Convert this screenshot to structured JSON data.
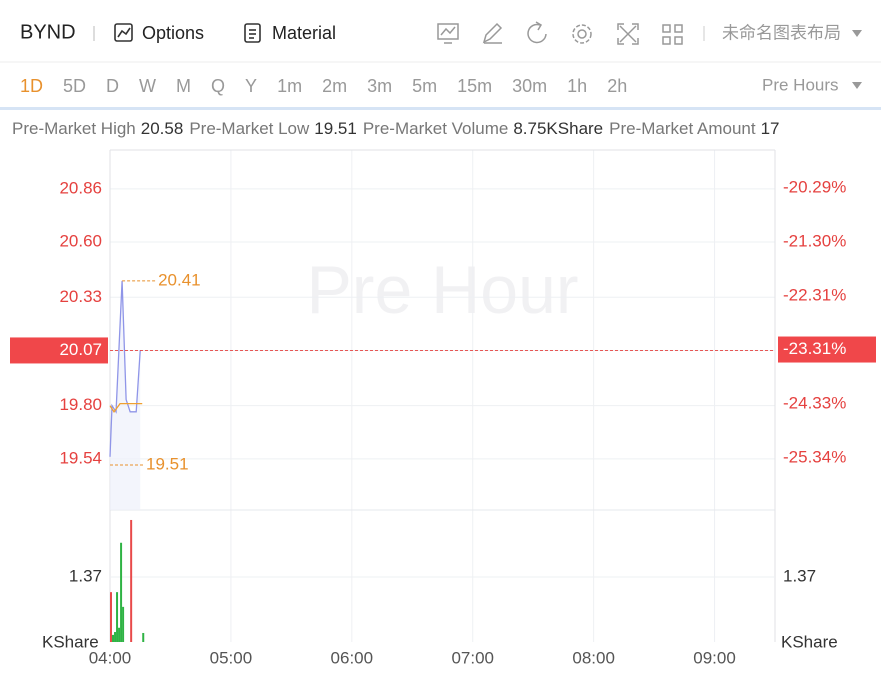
{
  "header": {
    "symbol": "BYND",
    "buttons": [
      "Options",
      "Material"
    ],
    "layout_name": "未命名图表布局"
  },
  "intervals": [
    "1D",
    "5D",
    "D",
    "W",
    "M",
    "Q",
    "Y",
    "1m",
    "2m",
    "3m",
    "5m",
    "15m",
    "30m",
    "1h",
    "2h"
  ],
  "selected_interval_index": 0,
  "session": "Pre Hours",
  "stats": [
    {
      "label": "Pre-Market High",
      "value": "20.58"
    },
    {
      "label": "Pre-Market Low",
      "value": "19.51"
    },
    {
      "label": "Pre-Market Volume",
      "value": "8.75KShare"
    },
    {
      "label": "Pre-Market Amount",
      "value": "17"
    }
  ],
  "chart_data": {
    "type": "line",
    "watermark": "Pre Hour",
    "xlim": [
      "04:00",
      "09:30"
    ],
    "xticks": [
      "04:00",
      "05:00",
      "06:00",
      "07:00",
      "08:00",
      "09:00"
    ],
    "ylim": [
      19.29,
      21.05
    ],
    "yticks": [
      20.86,
      {
        "value": 20.6,
        "label": "20.60"
      },
      20.33,
      20.07,
      {
        "value": 19.8,
        "label": "19.80"
      },
      19.54
    ],
    "y2lim": [
      -26.31,
      -19.58
    ],
    "y2ticks": [
      {
        "value": -20.29,
        "label": "-20.29%"
      },
      {
        "value": -21.3,
        "label": "-21.30%"
      },
      {
        "value": -22.31,
        "label": "-22.31%"
      },
      {
        "value": -23.31,
        "label": "-23.31%"
      },
      {
        "value": -24.33,
        "label": "-24.33%"
      },
      {
        "value": -25.34,
        "label": "-25.34%"
      }
    ],
    "grid": true,
    "current_price": 20.07,
    "series": [
      {
        "color": "#8f95e8",
        "x": [
          "04:00",
          "04:01",
          "04:03",
          "04:06",
          "04:08",
          "04:10",
          "04:13",
          "04:15"
        ],
        "values": [
          19.55,
          19.8,
          19.77,
          20.41,
          19.83,
          19.77,
          19.77,
          20.07
        ]
      },
      {
        "color": "#f0a030",
        "x": [
          "04:00",
          "04:02",
          "04:05",
          "04:08",
          "04:16"
        ],
        "values": [
          19.8,
          19.77,
          19.81,
          19.81,
          19.81
        ]
      }
    ],
    "annotations": [
      {
        "x": "04:06",
        "value": 20.41
      },
      {
        "x": "04:00",
        "value": 19.51
      }
    ],
    "volume": {
      "x": [
        "04:00",
        "04:01",
        "04:02",
        "04:03",
        "04:04",
        "04:05",
        "04:06",
        "04:10",
        "04:16"
      ],
      "values": [
        1.05,
        0.15,
        0.21,
        1.05,
        0.3,
        2.09,
        0.74,
        2.57,
        0.19
      ],
      "colors": [
        "#e84a4a",
        "#2fb344",
        "#2fb344",
        "#2fb344",
        "#2fb344",
        "#2fb344",
        "#2fb344",
        "#e84a4a",
        "#2fb344"
      ],
      "ylim": [
        0,
        2.78
      ],
      "yticks": [
        1.37
      ],
      "unit": "KShare"
    }
  }
}
